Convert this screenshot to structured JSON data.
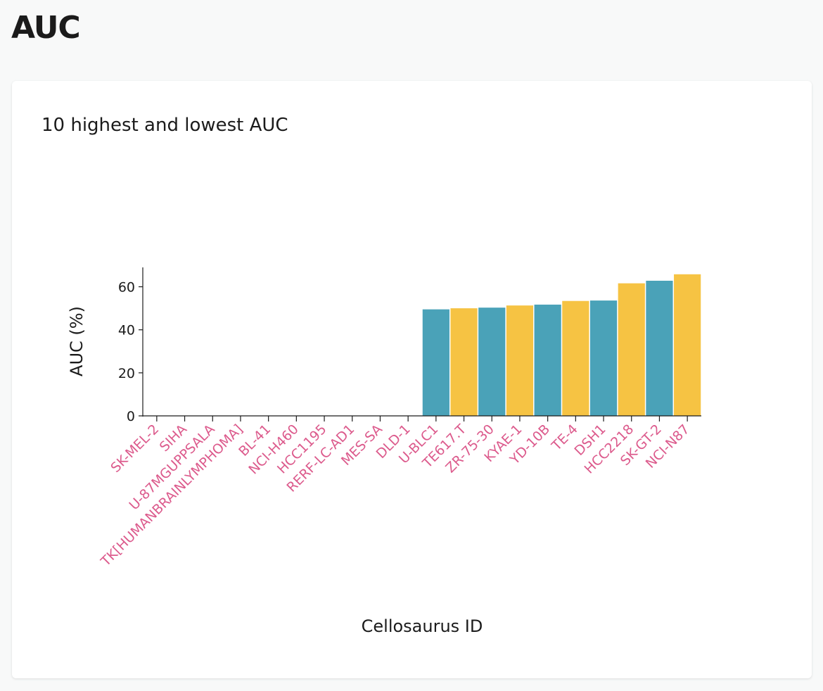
{
  "page": {
    "heading": "AUC"
  },
  "card": {
    "title": "10 highest and lowest AUC"
  },
  "chart_data": {
    "type": "bar",
    "title": "10 highest and lowest AUC",
    "xlabel": "Cellosaurus ID",
    "ylabel": "AUC (%)",
    "ylim": [
      0,
      69
    ],
    "yticks": [
      0,
      20,
      40,
      60
    ],
    "grid": false,
    "categories": [
      "SK-MEL-2",
      "SIHA",
      "U-87MGUPPSALA",
      "TK[HUMANBRAINLYMPHOMA]",
      "BL-41",
      "NCI-H460",
      "HCC1195",
      "RERF-LC-AD1",
      "MES-SA",
      "DLD-1",
      "U-BLC1",
      "TE617.T",
      "ZR-75-30",
      "KYAE-1",
      "YD-10B",
      "TE-4",
      "DSH1",
      "HCC2218",
      "SK-GT-2",
      "NCI-N87"
    ],
    "values": [
      0,
      0,
      0,
      0,
      0,
      0,
      0,
      0,
      0,
      0,
      49.5,
      50,
      50.3,
      51.3,
      51.7,
      53.4,
      53.6,
      61.6,
      62.8,
      65.8
    ],
    "colors": {
      "primary": "#4aa2b8",
      "secondary": "#f6c343",
      "label": "#dc5a8c"
    }
  }
}
